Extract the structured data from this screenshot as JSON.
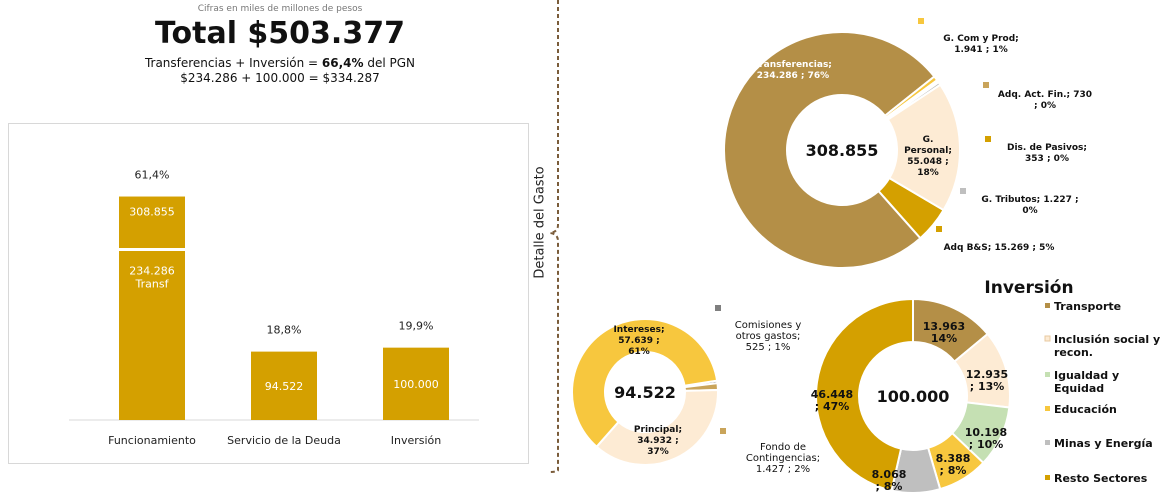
{
  "header": {
    "subtitle": "Cifras en miles de millones de pesos",
    "total": "Total $503.377",
    "eq_line1_a": "Transferencias  + Inversión = ",
    "eq_line1_bold": "66,4%",
    "eq_line1_b": " del PGN",
    "eq_line2": "$234.286  +  100.000  = $334.287"
  },
  "side_label": "Detalle del Gasto",
  "colors": {
    "gold": "#d4a000",
    "brown": "#b48f47",
    "cream": "#fdebd4",
    "yellow": "#f7c73e",
    "gray": "#bfbfbf",
    "green": "#c5e0b3",
    "darkgray": "#7f7f7f"
  },
  "chart_data": [
    {
      "type": "bar",
      "categories": [
        "Funcionamiento",
        "Servicio de la Deuda",
        "Inversión"
      ],
      "values": [
        308.855,
        94.522,
        100.0
      ],
      "value_labels": [
        "308.855",
        "94.522",
        "100.000"
      ],
      "pct_labels": [
        "61,4%",
        "18,8%",
        "19,9%"
      ],
      "inner_segment": {
        "value": 234.286,
        "label_line1": "234.286",
        "label_line2": "Transf"
      },
      "ylim": [
        0,
        340
      ]
    },
    {
      "type": "pie",
      "center_label": "308.855",
      "slices": [
        {
          "name": "Transferencias",
          "value": 234286,
          "label": "Transferencias; 234.286 ; 76%",
          "color": "#b48f47"
        },
        {
          "name": "G. Com y Prod",
          "value": 1941,
          "label": "G. Com y Prod; 1.941 ; 1%",
          "color": "#f7c73e"
        },
        {
          "name": "Adq. Act. Fin.",
          "value": 730,
          "label": "Adq. Act. Fin.;  730 ; 0%",
          "color": "#c9a45a"
        },
        {
          "name": "Dis. de Pasivos",
          "value": 353,
          "label": "Dis. de Pasivos; 353 ; 0%",
          "color": "#d4a000"
        },
        {
          "name": "G. Personal",
          "value": 55048,
          "label": "G. Personal; 55.048 ; 18%",
          "color": "#fdebd4"
        },
        {
          "name": "G. Tributos",
          "value": 1227,
          "label": "G. Tributos;  1.227 ; 0%",
          "color": "#bfbfbf"
        },
        {
          "name": "Adq B&S",
          "value": 15269,
          "label": "Adq B&S;  15.269 ; 5%",
          "color": "#d4a000"
        }
      ]
    },
    {
      "type": "pie",
      "center_label": "94.522",
      "slices": [
        {
          "name": "Comisiones y otros gastos",
          "value": 525,
          "label": "Comisiones y otros gastos; 525 ; 1%",
          "color": "#7f7f7f"
        },
        {
          "name": "Fondo de Contingencias",
          "value": 1427,
          "label": "Fondo de Contingencias; 1.427 ; 2%",
          "color": "#c9a45a"
        },
        {
          "name": "Principal",
          "value": 34932,
          "label": "Principal; 34.932 ; 37%",
          "color": "#fdebd4"
        },
        {
          "name": "Intereses",
          "value": 57639,
          "label": "Intereses; 57.639 ; 61%",
          "color": "#f7c73e"
        }
      ]
    },
    {
      "type": "pie",
      "title": "Inversión",
      "center_label": "100.000",
      "slices": [
        {
          "name": "Transporte",
          "value": 13963,
          "label": "13.963 14%",
          "color": "#b48f47"
        },
        {
          "name": "Inclusión social y recon.",
          "value": 12935,
          "label": "12.935 ; 13%",
          "color": "#fdebd4"
        },
        {
          "name": "Igualdad y Equidad",
          "value": 10198,
          "label": "10.198 ; 10%",
          "color": "#c5e0b3"
        },
        {
          "name": "Educación",
          "value": 8388,
          "label": "8.388 ; 8%",
          "color": "#f7c73e"
        },
        {
          "name": "Minas y Energía",
          "value": 8068,
          "label": "8.068 ; 8%",
          "color": "#bfbfbf"
        },
        {
          "name": "Resto Sectores",
          "value": 46448,
          "label": "46.448 ; 47%",
          "color": "#d4a000"
        }
      ],
      "legend": [
        "Transporte",
        "Inclusión social y recon.",
        "Igualdad y Equidad",
        "Educación",
        "Minas y Energía",
        "Resto Sectores"
      ]
    }
  ]
}
